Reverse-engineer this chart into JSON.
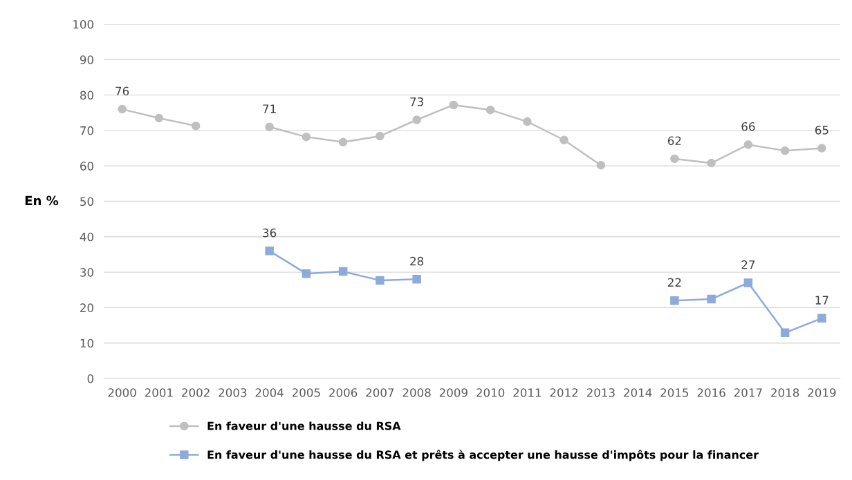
{
  "chart_data": {
    "type": "line",
    "ylabel": "En %",
    "categories": [
      "2000",
      "2001",
      "2002",
      "2003",
      "2004",
      "2005",
      "2006",
      "2007",
      "2008",
      "2009",
      "2010",
      "2011",
      "2012",
      "2013",
      "2014",
      "2015",
      "2016",
      "2017",
      "2018",
      "2019"
    ],
    "series": [
      {
        "name": "En faveur d'une hausse du RSA",
        "color": "#bfbfbf",
        "marker": "circle",
        "values": [
          76,
          73.5,
          71.3,
          null,
          71,
          68.2,
          66.7,
          68.4,
          73,
          77.2,
          75.8,
          72.5,
          67.3,
          60.2,
          null,
          62,
          60.8,
          66,
          64.3,
          65
        ],
        "value_labels": [
          "76",
          null,
          null,
          null,
          "71",
          null,
          null,
          null,
          "73",
          null,
          null,
          null,
          null,
          null,
          null,
          "62",
          null,
          "66",
          null,
          "65"
        ]
      },
      {
        "name": "En faveur d'une hausse du RSA et prêts à accepter une hausse d'impôts pour la financer",
        "color": "#8eaadb",
        "marker": "square",
        "values": [
          null,
          null,
          null,
          null,
          36,
          29.6,
          30.2,
          27.7,
          28,
          null,
          null,
          null,
          null,
          null,
          null,
          22,
          22.4,
          27,
          12.9,
          17
        ],
        "value_labels": [
          null,
          null,
          null,
          null,
          "36",
          null,
          null,
          null,
          "28",
          null,
          null,
          null,
          null,
          null,
          null,
          "22",
          null,
          "27",
          null,
          "17"
        ]
      }
    ],
    "ylim": [
      0,
      100
    ],
    "yticks": [
      0,
      10,
      20,
      30,
      40,
      50,
      60,
      70,
      80,
      90,
      100
    ],
    "grid": "y",
    "legend": "bottom",
    "line_style": "solid"
  }
}
